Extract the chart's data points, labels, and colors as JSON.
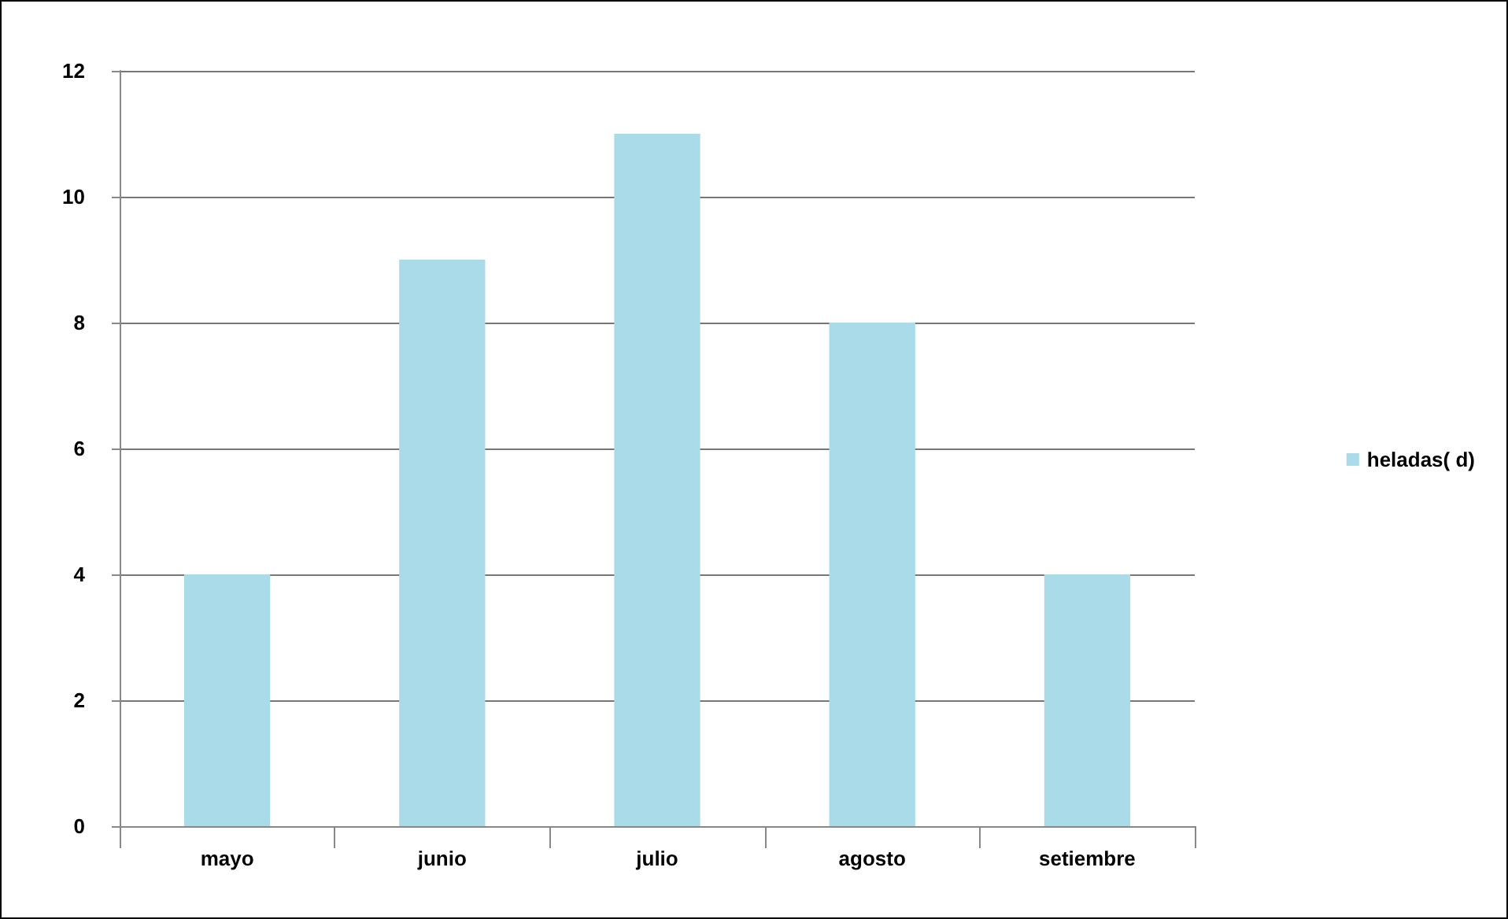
{
  "chart_data": {
    "type": "bar",
    "categories": [
      "mayo",
      "junio",
      "julio",
      "agosto",
      "setiembre"
    ],
    "series": [
      {
        "name": "heladas( d)",
        "color": "#a9dbe8",
        "values": [
          4,
          9,
          11,
          8,
          4
        ]
      }
    ],
    "ylim": [
      0,
      12
    ],
    "yticks": [
      0,
      2,
      4,
      6,
      8,
      10,
      12
    ],
    "grid": "y",
    "legend": "right"
  }
}
